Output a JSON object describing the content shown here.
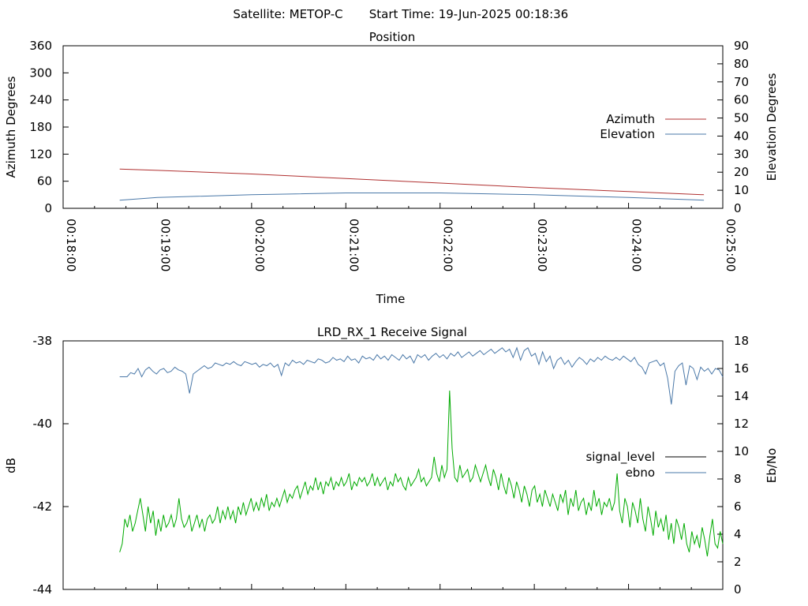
{
  "header": {
    "satellite": "Satellite: METOP-C",
    "start_time": "Start Time: 19-Jun-2025 00:18:36"
  },
  "chart_data": [
    {
      "type": "line",
      "title": "Position",
      "xlabel": "Time",
      "ylabel": "Azimuth Degrees",
      "y2label": "Elevation Degrees",
      "xlim": [
        "00:18:00",
        "00:25:00"
      ],
      "ylim": [
        0,
        360
      ],
      "y2lim": [
        0,
        90
      ],
      "x_ticks": [
        "00:18:00",
        "00:19:00",
        "00:20:00",
        "00:21:00",
        "00:22:00",
        "00:23:00",
        "00:24:00",
        "00:25:00"
      ],
      "y_ticks": [
        "0",
        "60",
        "120",
        "180",
        "240",
        "300",
        "360"
      ],
      "y2_ticks": [
        "0",
        "10",
        "20",
        "30",
        "40",
        "50",
        "60",
        "70",
        "80",
        "90"
      ],
      "grid": false,
      "legend": "right",
      "series": [
        {
          "name": "Azimuth",
          "axis": "left",
          "color": "#b03030",
          "x": [
            "00:18:36",
            "00:19:00",
            "00:20:00",
            "00:21:00",
            "00:22:00",
            "00:23:00",
            "00:24:00",
            "00:24:48"
          ],
          "values": [
            87,
            84,
            76,
            66,
            56,
            46,
            37,
            30
          ]
        },
        {
          "name": "Elevation",
          "axis": "right",
          "color": "#4a78a8",
          "x": [
            "00:18:36",
            "00:19:00",
            "00:20:00",
            "00:21:00",
            "00:22:00",
            "00:23:00",
            "00:24:00",
            "00:24:48"
          ],
          "values": [
            4.5,
            6,
            7.5,
            8.5,
            8.5,
            7.5,
            6,
            4.5
          ]
        }
      ]
    },
    {
      "type": "line",
      "title": "LRD_RX_1 Receive Signal",
      "ylabel": "dB",
      "y2label": "Eb/No",
      "ylim": [
        -44,
        -38
      ],
      "y2lim": [
        0,
        18
      ],
      "y_ticks": [
        "-44",
        "-42",
        "-40",
        "-38"
      ],
      "y2_ticks": [
        "0",
        "2",
        "4",
        "6",
        "8",
        "10",
        "12",
        "14",
        "16",
        "18"
      ],
      "grid": false,
      "legend": "right",
      "series": [
        {
          "name": "signal_level",
          "axis": "left",
          "color": "#00aa00",
          "legend_color": "#000000",
          "values": [
            -43.1,
            -42.9,
            -42.3,
            -42.5,
            -42.2,
            -42.6,
            -42.4,
            -42.1,
            -41.8,
            -42.2,
            -42.6,
            -42.0,
            -42.4,
            -42.1,
            -42.7,
            -42.3,
            -42.6,
            -42.2,
            -42.5,
            -42.4,
            -42.2,
            -42.5,
            -42.3,
            -41.8,
            -42.3,
            -42.5,
            -42.4,
            -42.2,
            -42.6,
            -42.4,
            -42.2,
            -42.5,
            -42.3,
            -42.6,
            -42.3,
            -42.2,
            -42.4,
            -42.3,
            -42.0,
            -42.4,
            -42.1,
            -42.3,
            -42.0,
            -42.3,
            -42.1,
            -42.4,
            -42.0,
            -42.2,
            -41.9,
            -42.2,
            -42.0,
            -41.8,
            -42.1,
            -41.9,
            -42.1,
            -41.8,
            -42.0,
            -41.7,
            -42.1,
            -41.9,
            -42.0,
            -41.8,
            -42.0,
            -41.8,
            -41.6,
            -41.9,
            -41.7,
            -41.8,
            -41.6,
            -41.5,
            -41.8,
            -41.6,
            -41.4,
            -41.7,
            -41.5,
            -41.6,
            -41.3,
            -41.6,
            -41.4,
            -41.7,
            -41.4,
            -41.5,
            -41.3,
            -41.6,
            -41.4,
            -41.5,
            -41.3,
            -41.5,
            -41.4,
            -41.2,
            -41.6,
            -41.4,
            -41.5,
            -41.3,
            -41.4,
            -41.3,
            -41.5,
            -41.4,
            -41.2,
            -41.5,
            -41.3,
            -41.5,
            -41.4,
            -41.3,
            -41.6,
            -41.4,
            -41.5,
            -41.2,
            -41.4,
            -41.3,
            -41.5,
            -41.6,
            -41.3,
            -41.5,
            -41.4,
            -41.3,
            -41.1,
            -41.4,
            -41.3,
            -41.5,
            -41.4,
            -41.3,
            -40.8,
            -41.2,
            -41.4,
            -41.0,
            -41.3,
            -41.1,
            -39.2,
            -40.6,
            -41.3,
            -41.4,
            -41.0,
            -41.3,
            -41.2,
            -41.1,
            -41.4,
            -41.3,
            -41.0,
            -41.2,
            -41.4,
            -41.2,
            -41.0,
            -41.3,
            -41.5,
            -41.1,
            -41.3,
            -41.6,
            -41.2,
            -41.5,
            -41.7,
            -41.3,
            -41.5,
            -41.8,
            -41.4,
            -41.6,
            -41.9,
            -41.5,
            -41.7,
            -42.0,
            -41.6,
            -41.5,
            -41.9,
            -41.7,
            -42.0,
            -41.6,
            -41.8,
            -42.0,
            -41.7,
            -41.9,
            -42.1,
            -41.7,
            -41.9,
            -41.6,
            -42.2,
            -41.8,
            -42.0,
            -41.6,
            -42.1,
            -41.9,
            -41.8,
            -42.2,
            -41.9,
            -42.1,
            -41.6,
            -42.0,
            -41.8,
            -42.2,
            -41.9,
            -42.0,
            -41.8,
            -42.1,
            -41.9,
            -41.2,
            -42.1,
            -42.4,
            -41.8,
            -42.0,
            -42.5,
            -41.9,
            -42.1,
            -42.4,
            -41.8,
            -42.3,
            -42.6,
            -42.0,
            -42.3,
            -42.7,
            -42.1,
            -42.5,
            -42.3,
            -42.6,
            -42.2,
            -42.8,
            -42.4,
            -42.9,
            -42.3,
            -42.5,
            -42.8,
            -42.4,
            -42.9,
            -43.1,
            -42.6,
            -42.9,
            -42.7,
            -43.0,
            -42.5,
            -42.8,
            -43.2,
            -42.7,
            -42.3,
            -42.9,
            -43.0,
            -42.6,
            -42.9
          ]
        },
        {
          "name": "ebno",
          "axis": "right",
          "color": "#4a78a8",
          "values": [
            15.4,
            15.4,
            15.4,
            15.7,
            15.6,
            16.0,
            15.4,
            15.9,
            16.1,
            15.8,
            15.6,
            15.9,
            16.0,
            15.7,
            15.8,
            16.1,
            15.9,
            15.8,
            15.6,
            14.2,
            15.6,
            15.8,
            16.0,
            16.2,
            16.0,
            16.1,
            16.4,
            16.3,
            16.2,
            16.4,
            16.3,
            16.5,
            16.3,
            16.2,
            16.5,
            16.4,
            16.3,
            16.4,
            16.1,
            16.3,
            16.2,
            16.4,
            16.1,
            16.3,
            15.5,
            16.4,
            16.2,
            16.6,
            16.4,
            16.5,
            16.3,
            16.6,
            16.5,
            16.4,
            16.7,
            16.6,
            16.4,
            16.5,
            16.8,
            16.6,
            16.7,
            16.5,
            16.9,
            16.6,
            16.7,
            16.4,
            16.9,
            16.7,
            16.8,
            16.6,
            17.0,
            16.7,
            16.9,
            16.6,
            17.0,
            16.8,
            16.6,
            17.0,
            16.7,
            16.9,
            16.4,
            17.0,
            16.8,
            17.0,
            16.6,
            16.9,
            17.1,
            16.8,
            17.0,
            16.7,
            17.1,
            16.9,
            17.2,
            16.8,
            17.0,
            17.2,
            16.9,
            17.1,
            17.3,
            17.0,
            17.2,
            17.4,
            17.1,
            17.3,
            17.5,
            17.2,
            17.4,
            16.8,
            17.5,
            16.6,
            17.3,
            17.5,
            16.9,
            17.1,
            16.3,
            17.2,
            16.5,
            16.9,
            16.0,
            16.6,
            16.8,
            16.3,
            16.6,
            16.1,
            16.5,
            16.8,
            16.6,
            16.3,
            16.7,
            16.5,
            16.8,
            16.6,
            16.9,
            16.7,
            16.6,
            16.8,
            16.6,
            16.9,
            16.7,
            16.5,
            16.8,
            16.3,
            16.1,
            15.6,
            16.4,
            16.5,
            16.6,
            16.2,
            16.4,
            15.3,
            13.4,
            15.8,
            16.2,
            16.4,
            14.8,
            16.2,
            16.0,
            15.2,
            16.1,
            15.8,
            16.0,
            15.6,
            16.0,
            15.9,
            15.4
          ]
        }
      ]
    }
  ]
}
